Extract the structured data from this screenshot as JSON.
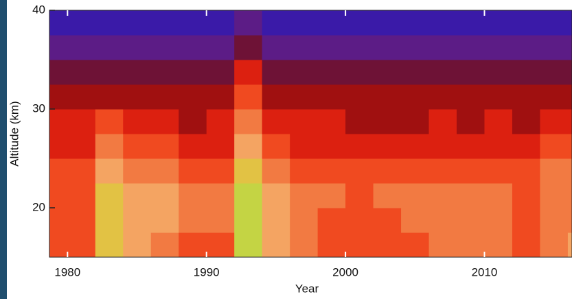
{
  "chart_data": {
    "type": "heatmap",
    "xlabel": "Year",
    "ylabel": "Altitude (km)",
    "xlim": [
      1978.7,
      2016.3
    ],
    "ylim": [
      15,
      40
    ],
    "xticks": [
      1980,
      1990,
      2000,
      2010
    ],
    "yticks": [
      20,
      30,
      40
    ],
    "xbins": [
      1978,
      1980,
      1982,
      1984,
      1986,
      1988,
      1990,
      1992,
      1994,
      1996,
      1998,
      2000,
      2002,
      2004,
      2006,
      2008,
      2010,
      2012,
      2014,
      2016,
      2018
    ],
    "ybins": [
      15,
      17.5,
      20,
      22.5,
      25,
      27.5,
      30,
      32.5,
      35,
      37.5,
      40
    ],
    "colorscale": [
      "#3a1aa8",
      "#5c1c86",
      "#6e1236",
      "#a01010",
      "#dc2010",
      "#f04a20",
      "#f27a42",
      "#f4a462",
      "#e2c244",
      "#c4d444",
      "#f4f466"
    ],
    "z": [
      [
        5,
        5,
        8,
        7,
        6,
        5,
        5,
        9,
        7,
        6,
        5,
        5,
        5,
        5,
        6,
        6,
        6,
        5,
        6,
        7
      ],
      [
        5,
        5,
        8,
        7,
        7,
        6,
        6,
        9,
        7,
        6,
        5,
        5,
        5,
        6,
        6,
        6,
        6,
        5,
        6,
        6
      ],
      [
        5,
        5,
        8,
        7,
        7,
        6,
        6,
        9,
        7,
        6,
        6,
        5,
        6,
        6,
        6,
        6,
        6,
        5,
        6,
        6
      ],
      [
        5,
        5,
        7,
        6,
        6,
        5,
        5,
        8,
        6,
        5,
        5,
        5,
        5,
        5,
        5,
        5,
        5,
        5,
        6,
        6
      ],
      [
        4,
        4,
        6,
        5,
        5,
        4,
        4,
        7,
        5,
        4,
        4,
        4,
        4,
        4,
        4,
        4,
        4,
        4,
        5,
        5
      ],
      [
        4,
        4,
        5,
        4,
        4,
        3,
        4,
        6,
        4,
        4,
        4,
        3,
        3,
        3,
        4,
        3,
        4,
        3,
        4,
        4
      ],
      [
        3,
        3,
        3,
        3,
        3,
        3,
        3,
        5,
        3,
        3,
        3,
        3,
        3,
        3,
        3,
        3,
        3,
        3,
        3,
        3
      ],
      [
        2,
        2,
        2,
        2,
        2,
        2,
        2,
        4,
        2,
        2,
        2,
        2,
        2,
        2,
        2,
        2,
        2,
        2,
        2,
        2
      ],
      [
        1,
        1,
        1,
        1,
        1,
        1,
        1,
        2,
        1,
        1,
        1,
        1,
        1,
        1,
        1,
        1,
        1,
        1,
        1,
        1
      ],
      [
        0,
        0,
        0,
        0,
        0,
        0,
        0,
        1,
        0,
        0,
        0,
        0,
        0,
        0,
        0,
        0,
        0,
        0,
        0,
        0
      ]
    ]
  }
}
